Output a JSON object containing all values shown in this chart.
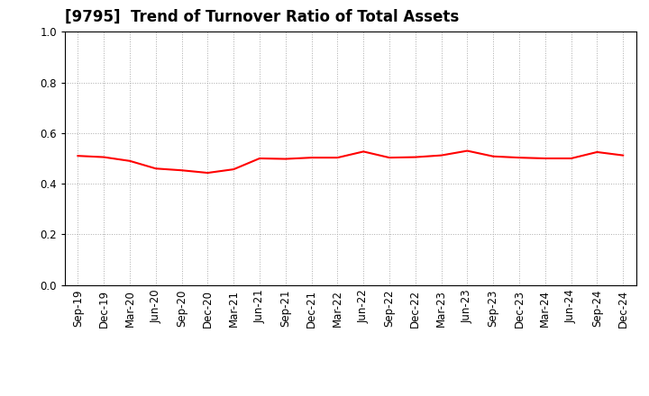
{
  "title": "[9795]  Trend of Turnover Ratio of Total Assets",
  "x_labels": [
    "Sep-19",
    "Dec-19",
    "Mar-20",
    "Jun-20",
    "Sep-20",
    "Dec-20",
    "Mar-21",
    "Jun-21",
    "Sep-21",
    "Dec-21",
    "Mar-22",
    "Jun-22",
    "Sep-22",
    "Dec-22",
    "Mar-23",
    "Jun-23",
    "Sep-23",
    "Dec-23",
    "Mar-24",
    "Jun-24",
    "Sep-24",
    "Dec-24"
  ],
  "y_values": [
    0.51,
    0.505,
    0.49,
    0.46,
    0.453,
    0.443,
    0.457,
    0.5,
    0.498,
    0.503,
    0.503,
    0.527,
    0.503,
    0.505,
    0.512,
    0.53,
    0.508,
    0.503,
    0.5,
    0.5,
    0.525,
    0.512
  ],
  "line_color": "#FF0000",
  "line_width": 1.5,
  "ylim": [
    0.0,
    1.0
  ],
  "yticks": [
    0.0,
    0.2,
    0.4,
    0.6,
    0.8,
    1.0
  ],
  "background_color": "#ffffff",
  "grid_color": "#aaaaaa",
  "title_fontsize": 12,
  "tick_fontsize": 8.5
}
